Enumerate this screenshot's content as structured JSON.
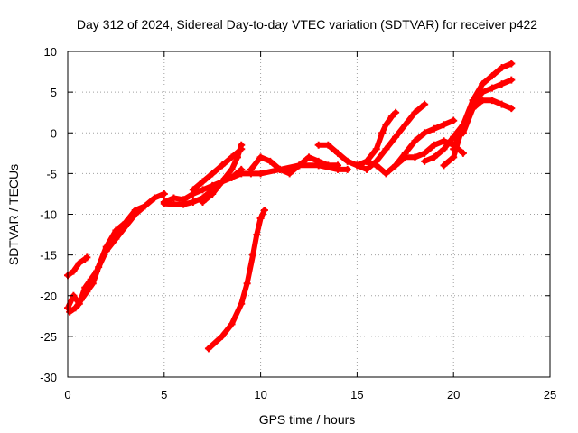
{
  "chart_data": {
    "type": "scatter",
    "title": "Day 312 of 2024, Sidereal Day-to-day VTEC variation (SDTVAR) for receiver p422",
    "xlabel": "GPS time / hours",
    "ylabel": "SDTVAR / TECUs",
    "xlim": [
      0,
      25
    ],
    "ylim": [
      -30,
      10
    ],
    "x_ticks": [
      0,
      5,
      10,
      15,
      20,
      25
    ],
    "y_ticks": [
      -30,
      -25,
      -20,
      -15,
      -10,
      -5,
      0,
      5,
      10
    ],
    "grid": true,
    "marker": "plus",
    "color": "#ff0000",
    "series": [
      {
        "x": [
          0.0,
          0.3,
          0.6,
          0.9,
          1.2,
          1.5,
          2.0,
          2.5,
          3.0,
          3.5,
          4.0,
          4.5,
          5.0
        ],
        "y": [
          -21.5,
          -20.0,
          -21.0,
          -19.0,
          -18.0,
          -17.0,
          -14.0,
          -12.0,
          -11.0,
          -9.5,
          -9.0,
          -8.0,
          -7.5
        ]
      },
      {
        "x": [
          0.0,
          0.3,
          0.6,
          0.9,
          1.0
        ],
        "y": [
          -17.5,
          -17.0,
          -16.0,
          -15.5,
          -15.3
        ]
      },
      {
        "x": [
          0.1,
          0.4,
          0.7,
          1.0,
          1.3,
          1.6,
          2.0,
          2.5,
          3.0,
          3.5,
          4.0
        ],
        "y": [
          -22.0,
          -21.5,
          -20.5,
          -19.5,
          -18.5,
          -16.5,
          -14.5,
          -13.0,
          -11.5,
          -10.0,
          -9.0
        ]
      },
      {
        "x": [
          5.0,
          5.5,
          6.0,
          6.5,
          7.0,
          7.5,
          8.0,
          8.5,
          9.0
        ],
        "y": [
          -8.5,
          -8.0,
          -8.2,
          -7.5,
          -7.0,
          -6.5,
          -6.0,
          -5.5,
          -4.5
        ]
      },
      {
        "x": [
          5.0,
          6.0,
          6.5,
          7.0,
          7.5,
          8.0,
          8.5,
          9.0,
          9.5,
          10.0,
          11.0,
          12.0,
          13.0,
          14.0,
          14.5
        ],
        "y": [
          -8.7,
          -8.8,
          -8.5,
          -8.0,
          -7.0,
          -6.0,
          -5.5,
          -5.0,
          -5.0,
          -5.0,
          -4.5,
          -4.0,
          -4.0,
          -4.5,
          -4.5
        ]
      },
      {
        "x": [
          6.5,
          7.0,
          7.5,
          8.0,
          8.5,
          9.0
        ],
        "y": [
          -7.0,
          -6.0,
          -5.0,
          -4.0,
          -3.0,
          -2.0
        ]
      },
      {
        "x": [
          7.0,
          7.5,
          8.0,
          8.5,
          8.8,
          9.0
        ],
        "y": [
          -8.5,
          -7.5,
          -6.0,
          -4.5,
          -3.0,
          -1.5
        ]
      },
      {
        "x": [
          7.3,
          8.0,
          8.5,
          9.0,
          9.3,
          9.6,
          9.8,
          10.0,
          10.2
        ],
        "y": [
          -26.5,
          -25.0,
          -23.5,
          -21.0,
          -18.5,
          -15.0,
          -12.5,
          -10.5,
          -9.5
        ]
      },
      {
        "x": [
          9.5,
          10.0,
          10.5,
          11.0,
          11.5,
          12.0,
          12.5,
          13.0,
          13.5,
          14.0
        ],
        "y": [
          -4.5,
          -3.0,
          -3.5,
          -4.5,
          -5.0,
          -4.0,
          -3.0,
          -3.5,
          -4.0,
          -4.0
        ]
      },
      {
        "x": [
          13.0,
          13.5,
          14.0,
          14.5,
          15.0
        ],
        "y": [
          -1.5,
          -1.5,
          -2.5,
          -3.5,
          -4.0
        ]
      },
      {
        "x": [
          15.0,
          15.5,
          16.0,
          16.5,
          17.0,
          17.5,
          18.0,
          18.5
        ],
        "y": [
          -4.0,
          -4.5,
          -3.5,
          -2.0,
          -0.5,
          1.0,
          2.5,
          3.5
        ]
      },
      {
        "x": [
          15.0,
          15.5,
          16.0,
          16.3,
          16.5,
          16.8,
          17.0
        ],
        "y": [
          -4.0,
          -3.5,
          -2.0,
          0.0,
          1.0,
          2.0,
          2.5
        ]
      },
      {
        "x": [
          15.5,
          16.0,
          16.5,
          17.0,
          17.5,
          18.0,
          18.5,
          19.0,
          19.5,
          20.0
        ],
        "y": [
          -3.5,
          -4.0,
          -5.0,
          -4.0,
          -2.5,
          -1.0,
          0.0,
          0.5,
          1.0,
          1.5
        ]
      },
      {
        "x": [
          17.0,
          17.5,
          18.0,
          18.5,
          19.0,
          19.5,
          20.0,
          20.5
        ],
        "y": [
          -4.0,
          -3.0,
          -3.0,
          -2.5,
          -1.5,
          -1.0,
          -1.5,
          -2.5
        ]
      },
      {
        "x": [
          18.5,
          19.0,
          19.5,
          20.0,
          20.5,
          21.0
        ],
        "y": [
          -3.5,
          -3.0,
          -2.0,
          -0.5,
          1.0,
          3.0
        ]
      },
      {
        "x": [
          19.5,
          20.0,
          20.5,
          21.0,
          21.5,
          22.0,
          22.5,
          23.0
        ],
        "y": [
          -4.0,
          -3.0,
          1.0,
          4.0,
          6.0,
          7.0,
          8.0,
          8.5
        ]
      },
      {
        "x": [
          20.0,
          20.5,
          21.0,
          21.5,
          22.0,
          22.5,
          23.0
        ],
        "y": [
          -2.0,
          1.0,
          3.5,
          5.0,
          5.5,
          6.0,
          6.5
        ]
      },
      {
        "x": [
          20.5,
          21.0,
          21.5,
          22.0,
          22.5,
          23.0
        ],
        "y": [
          0.0,
          3.0,
          4.0,
          4.0,
          3.5,
          3.0
        ]
      }
    ]
  }
}
